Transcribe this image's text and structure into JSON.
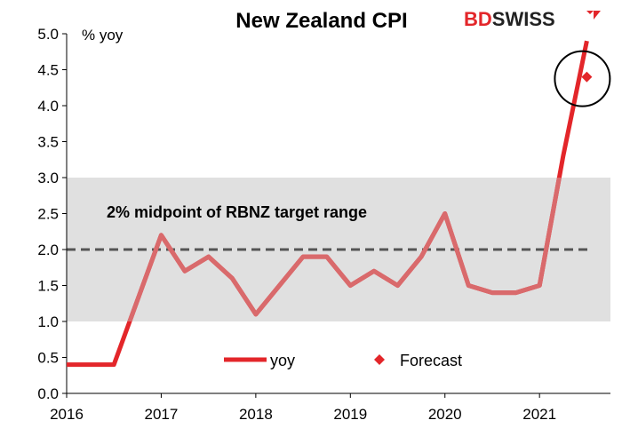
{
  "brand": {
    "part1": "BD",
    "part2": "SWISS",
    "color": "#e3262a",
    "dark": "#222222"
  },
  "chart_data": {
    "type": "line",
    "title": "New Zealand CPI",
    "ylabel": "% yoy",
    "ylim": [
      0,
      5.0
    ],
    "yticks": [
      "0.0",
      "0.5",
      "1.0",
      "1.5",
      "2.0",
      "2.5",
      "3.0",
      "3.5",
      "4.0",
      "4.5",
      "5.0"
    ],
    "xlim": [
      2016,
      2021.75
    ],
    "xticks": [
      "2016",
      "2017",
      "2018",
      "2019",
      "2020",
      "2021"
    ],
    "band": {
      "from": 1.0,
      "to": 3.0,
      "label": "2% midpoint of RBNZ target range",
      "midpoint": 2.0
    },
    "series": [
      {
        "name": "yoy",
        "x": [
          2016.0,
          2016.25,
          2016.5,
          2016.75,
          2017.0,
          2017.25,
          2017.5,
          2017.75,
          2018.0,
          2018.25,
          2018.5,
          2018.75,
          2019.0,
          2019.25,
          2019.5,
          2019.75,
          2020.0,
          2020.25,
          2020.5,
          2020.75,
          2021.0,
          2021.25,
          2021.5
        ],
        "values": [
          0.4,
          0.4,
          0.4,
          1.3,
          2.2,
          1.7,
          1.9,
          1.6,
          1.1,
          1.5,
          1.9,
          1.9,
          1.5,
          1.7,
          1.5,
          1.9,
          2.5,
          1.5,
          1.4,
          1.4,
          1.5,
          3.3,
          4.9
        ]
      },
      {
        "name": "Forecast",
        "x": [
          2021.5
        ],
        "values": [
          4.4
        ]
      }
    ],
    "colors": {
      "line_outside": "#e3262a",
      "line_inside": "#d96a6c",
      "band": "#e0e0e0",
      "midline": "#555555",
      "forecast": "#e3262a"
    }
  }
}
